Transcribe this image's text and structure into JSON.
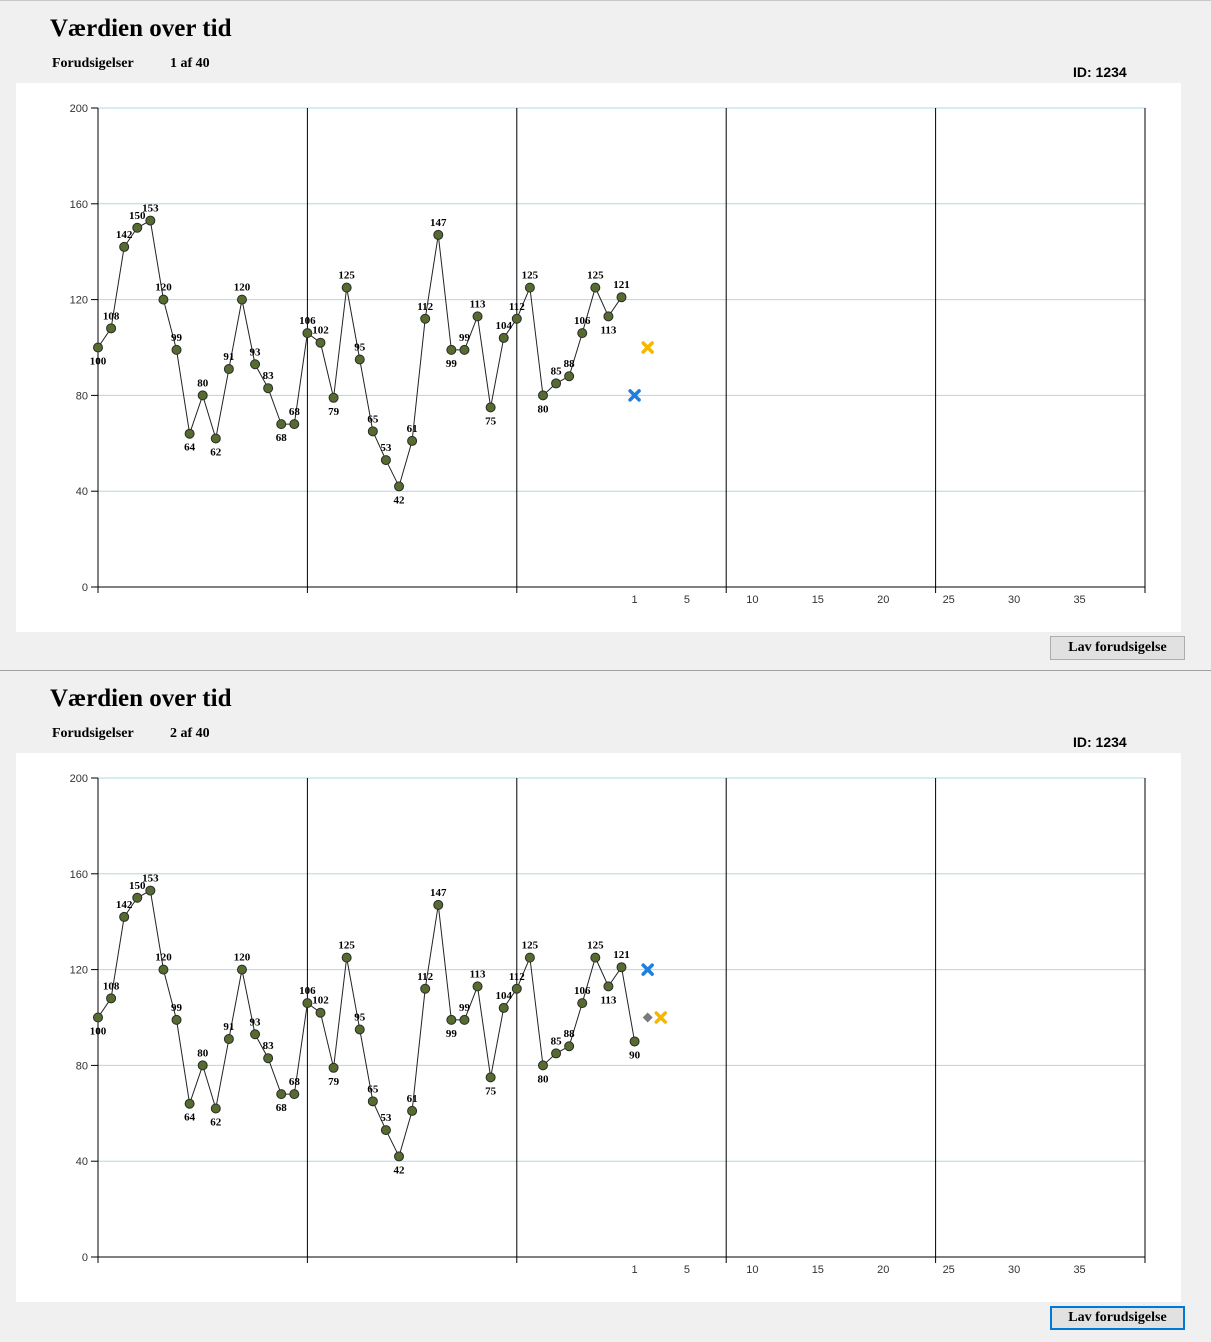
{
  "panels": [
    {
      "title": "Værdien over tid",
      "counter_label": "Forudsigelser",
      "counter": "1 af 40",
      "id_label": "ID: 1234",
      "button": "Lav forudsigelse",
      "chart_data": {
        "type": "line",
        "xlim": [
          -40,
          40
        ],
        "ylim": [
          0,
          200
        ],
        "xticks": [
          1,
          5,
          10,
          15,
          20,
          25,
          30,
          35
        ],
        "yticks": [
          0,
          40,
          80,
          120,
          160,
          200
        ],
        "x_gridlines": [
          -40,
          -24,
          -8,
          8,
          24,
          40
        ],
        "grid": true,
        "series": [
          {
            "color": "#556b2f",
            "marker": "circle",
            "line": true,
            "data_labels": true,
            "x": [
              -40,
              -39,
              -38,
              -37,
              -36,
              -35,
              -34,
              -33,
              -32,
              -31,
              -30,
              -29,
              -28,
              -27,
              -26,
              -25,
              -24,
              -23,
              -22,
              -21,
              -20,
              -19,
              -18,
              -17,
              -16,
              -15,
              -14,
              -13,
              -12,
              -11,
              -10,
              -9,
              -8,
              -7,
              -6,
              -5,
              -4,
              -3,
              -2,
              -1,
              0
            ],
            "values": [
              100,
              108,
              142,
              150,
              153,
              120,
              99,
              64,
              80,
              62,
              91,
              120,
              93,
              83,
              68,
              68,
              106,
              102,
              79,
              125,
              95,
              65,
              53,
              42,
              61,
              112,
              147,
              99,
              99,
              113,
              75,
              104,
              112,
              125,
              80,
              85,
              88,
              106,
              125,
              113,
              121
            ]
          },
          {
            "color": "#1e7fe0",
            "marker": "cross",
            "x": [
              1
            ],
            "values": [
              80
            ]
          },
          {
            "color": "#f5b800",
            "marker": "cross",
            "x": [
              2
            ],
            "values": [
              100
            ]
          }
        ]
      }
    },
    {
      "title": "Værdien over tid",
      "counter_label": "Forudsigelser",
      "counter": "2 af 40",
      "id_label": "ID: 1234",
      "button": "Lav forudsigelse",
      "chart_data": {
        "type": "line",
        "xlim": [
          -40,
          40
        ],
        "ylim": [
          0,
          200
        ],
        "xticks": [
          1,
          5,
          10,
          15,
          20,
          25,
          30,
          35
        ],
        "yticks": [
          0,
          40,
          80,
          120,
          160,
          200
        ],
        "x_gridlines": [
          -40,
          -24,
          -8,
          8,
          24,
          40
        ],
        "grid": true,
        "series": [
          {
            "color": "#556b2f",
            "marker": "circle",
            "line": true,
            "data_labels": true,
            "x": [
              -40,
              -39,
              -38,
              -37,
              -36,
              -35,
              -34,
              -33,
              -32,
              -31,
              -30,
              -29,
              -28,
              -27,
              -26,
              -25,
              -24,
              -23,
              -22,
              -21,
              -20,
              -19,
              -18,
              -17,
              -16,
              -15,
              -14,
              -13,
              -12,
              -11,
              -10,
              -9,
              -8,
              -7,
              -6,
              -5,
              -4,
              -3,
              -2,
              -1,
              0,
              1
            ],
            "values": [
              100,
              108,
              142,
              150,
              153,
              120,
              99,
              64,
              80,
              62,
              91,
              120,
              93,
              83,
              68,
              68,
              106,
              102,
              79,
              125,
              95,
              65,
              53,
              42,
              61,
              112,
              147,
              99,
              99,
              113,
              75,
              104,
              112,
              125,
              80,
              85,
              88,
              106,
              125,
              113,
              121,
              90
            ]
          },
          {
            "color": "#1e7fe0",
            "marker": "cross",
            "x": [
              2
            ],
            "values": [
              120
            ]
          },
          {
            "color": "#7a7a7a",
            "marker": "diamond",
            "x": [
              2
            ],
            "values": [
              100
            ]
          },
          {
            "color": "#f5b800",
            "marker": "cross",
            "x": [
              3
            ],
            "values": [
              100
            ]
          }
        ]
      }
    }
  ]
}
